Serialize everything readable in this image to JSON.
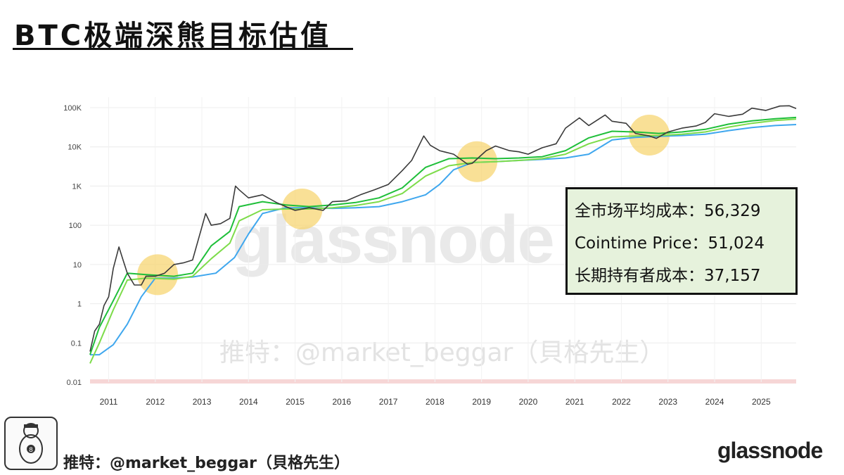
{
  "page": {
    "title": "BTC极端深熊目标估值",
    "handle": "推特：@market_beggar（貝格先生）",
    "brand": "glassnode"
  },
  "legend": {
    "items": [
      {
        "label": "全市场平均成本",
        "value": "56,329"
      },
      {
        "label": "Cointime Price",
        "value": "51,024"
      },
      {
        "label": "长期持有者成本",
        "value": "37,157"
      }
    ]
  },
  "colors": {
    "price": "#3a3a3a",
    "market_cost": "#1fbf3a",
    "cointime_price": "#7ddc4a",
    "lth_cost": "#3fa7ee",
    "highlight": "#f7d36a",
    "legend_bg": "#e6f2dc"
  },
  "icons": [
    "avatar-cartoon-icon"
  ],
  "chart_data": {
    "type": "line",
    "y_scale": "log",
    "ylim": [
      0.01,
      100000
    ],
    "y_ticks": [
      "0.01",
      "0.1",
      "1",
      "10",
      "100",
      "1K",
      "10K",
      "100K"
    ],
    "x_ticks": [
      "2011",
      "2012",
      "2013",
      "2014",
      "2015",
      "2016",
      "2017",
      "2018",
      "2019",
      "2020",
      "2021",
      "2022",
      "2023",
      "2024",
      "2025"
    ],
    "xlim": [
      2010.8,
      2025.95
    ],
    "grid": true,
    "series": [
      {
        "name": "Price",
        "key": "price",
        "x": [
          2010.8,
          2010.9,
          2011.0,
          2011.1,
          2011.2,
          2011.3,
          2011.42,
          2011.5,
          2011.6,
          2011.75,
          2011.9,
          2012.0,
          2012.2,
          2012.4,
          2012.6,
          2012.8,
          2013.0,
          2013.2,
          2013.28,
          2013.4,
          2013.6,
          2013.8,
          2013.92,
          2014.0,
          2014.2,
          2014.5,
          2014.8,
          2015.0,
          2015.2,
          2015.5,
          2015.8,
          2016.0,
          2016.3,
          2016.6,
          2016.9,
          2017.2,
          2017.5,
          2017.7,
          2017.96,
          2018.1,
          2018.3,
          2018.6,
          2018.9,
          2019.0,
          2019.3,
          2019.5,
          2019.8,
          2020.0,
          2020.2,
          2020.5,
          2020.8,
          2021.0,
          2021.3,
          2021.5,
          2021.85,
          2022.0,
          2022.3,
          2022.5,
          2022.8,
          2022.95,
          2023.2,
          2023.5,
          2023.8,
          2024.0,
          2024.2,
          2024.5,
          2024.8,
          2025.0,
          2025.3,
          2025.6,
          2025.8,
          2025.95
        ],
        "values": [
          0.06,
          0.2,
          0.3,
          0.9,
          1.5,
          8,
          28,
          14,
          6,
          3,
          3,
          5,
          5,
          6,
          10,
          11,
          13,
          90,
          200,
          100,
          110,
          150,
          1000,
          800,
          500,
          600,
          380,
          300,
          240,
          280,
          240,
          400,
          420,
          600,
          800,
          1100,
          2500,
          4500,
          19000,
          11000,
          8000,
          6500,
          3600,
          3800,
          8000,
          10500,
          8000,
          7500,
          6500,
          9500,
          12000,
          30000,
          55000,
          35000,
          65000,
          45000,
          40000,
          22000,
          19000,
          16500,
          24000,
          30000,
          34000,
          42000,
          70000,
          60000,
          68000,
          97000,
          85000,
          110000,
          112000,
          95000
        ]
      },
      {
        "name": "全市场平均成本",
        "key": "market_cost",
        "x": [
          2010.8,
          2011.0,
          2011.3,
          2011.6,
          2012.0,
          2012.6,
          2013.0,
          2013.4,
          2013.8,
          2014.0,
          2014.5,
          2015.0,
          2015.5,
          2016.0,
          2016.5,
          2017.0,
          2017.5,
          2018.0,
          2018.5,
          2019.0,
          2019.5,
          2020.0,
          2020.5,
          2021.0,
          2021.5,
          2022.0,
          2022.5,
          2023.0,
          2023.5,
          2024.0,
          2024.5,
          2025.0,
          2025.5,
          2025.95
        ],
        "values": [
          0.05,
          0.25,
          1.2,
          6,
          5.5,
          5,
          6,
          30,
          70,
          300,
          400,
          330,
          300,
          330,
          380,
          500,
          900,
          3000,
          5000,
          5200,
          5000,
          5200,
          5600,
          8000,
          17000,
          25000,
          24000,
          22000,
          24000,
          28000,
          38000,
          46000,
          52000,
          56329
        ]
      },
      {
        "name": "Cointime Price",
        "key": "cointime_price",
        "x": [
          2010.8,
          2011.0,
          2011.3,
          2011.6,
          2012.0,
          2012.6,
          2013.0,
          2013.4,
          2013.8,
          2014.0,
          2014.5,
          2015.0,
          2015.5,
          2016.0,
          2016.5,
          2017.0,
          2017.5,
          2018.0,
          2018.5,
          2019.0,
          2019.5,
          2020.0,
          2020.5,
          2021.0,
          2021.5,
          2022.0,
          2022.5,
          2023.0,
          2023.5,
          2024.0,
          2024.5,
          2025.0,
          2025.5,
          2025.95
        ],
        "values": [
          0.03,
          0.1,
          0.7,
          4,
          4.5,
          4.2,
          5,
          14,
          35,
          130,
          250,
          260,
          260,
          280,
          320,
          400,
          650,
          1800,
          3300,
          4000,
          4200,
          4500,
          5000,
          6500,
          12000,
          18000,
          19000,
          19500,
          21000,
          24000,
          32000,
          40000,
          47000,
          51024
        ]
      },
      {
        "name": "长期持有者成本",
        "key": "lth_cost",
        "x": [
          2010.8,
          2011.0,
          2011.3,
          2011.6,
          2011.9,
          2012.2,
          2012.6,
          2013.0,
          2013.5,
          2013.9,
          2014.2,
          2014.5,
          2015.0,
          2015.5,
          2016.0,
          2016.5,
          2017.0,
          2017.5,
          2018.0,
          2018.3,
          2018.6,
          2019.0,
          2019.5,
          2020.0,
          2020.5,
          2021.0,
          2021.5,
          2022.0,
          2022.5,
          2023.0,
          2023.5,
          2024.0,
          2024.5,
          2025.0,
          2025.5,
          2025.95
        ],
        "values": [
          0.05,
          0.05,
          0.09,
          0.3,
          1.5,
          4.5,
          4.5,
          4.8,
          6,
          15,
          60,
          200,
          280,
          280,
          270,
          280,
          300,
          400,
          600,
          1100,
          2600,
          4000,
          4200,
          4500,
          4800,
          5200,
          6500,
          15000,
          17500,
          18500,
          19500,
          21000,
          26000,
          31000,
          35000,
          37157
        ]
      }
    ],
    "highlights": [
      {
        "x": 2012.25,
        "y": 5.5
      },
      {
        "x": 2015.35,
        "y": 260
      },
      {
        "x": 2019.1,
        "y": 4200
      },
      {
        "x": 2022.8,
        "y": 20000
      }
    ]
  }
}
